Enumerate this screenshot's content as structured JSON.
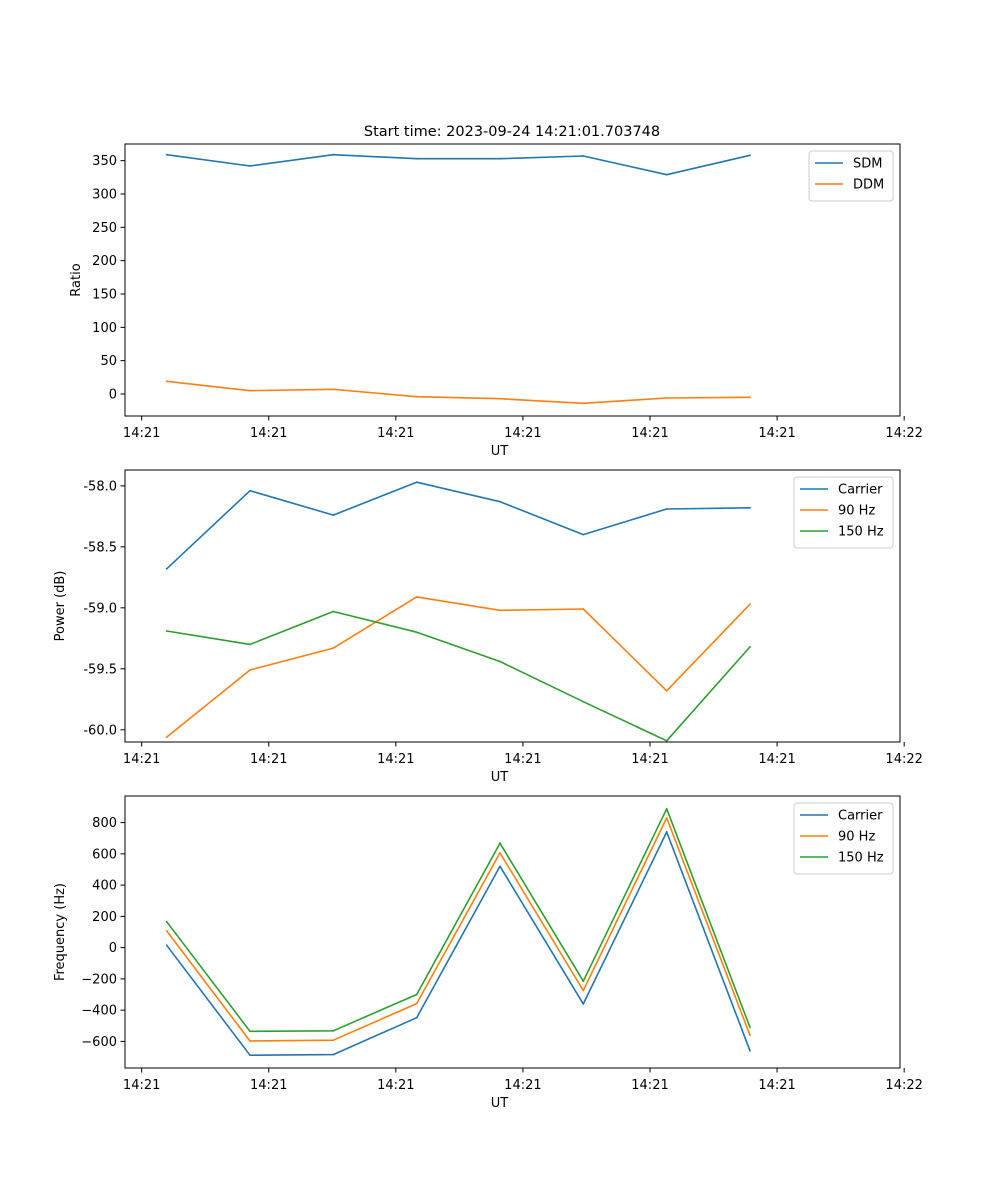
{
  "figure": {
    "title": "Start time: 2023-09-24 14:21:01.703748"
  },
  "chart_data": [
    {
      "type": "line",
      "xlabel": "UT",
      "ylabel": "Ratio",
      "xtick_labels": [
        "14:21",
        "14:21",
        "14:21",
        "14:21",
        "14:21",
        "14:21",
        "14:22"
      ],
      "xlim": [
        -0.2,
        9.1
      ],
      "ylim": [
        -33,
        375
      ],
      "yticks": [
        0,
        50,
        100,
        150,
        200,
        250,
        300,
        350
      ],
      "ytick_labels": [
        "0",
        "50",
        "100",
        "150",
        "200",
        "250",
        "300",
        "350"
      ],
      "x": [
        0.3,
        1.3,
        2.3,
        3.3,
        4.3,
        5.3,
        6.3,
        7.3
      ],
      "legend_position": "top-right",
      "series": [
        {
          "name": "SDM",
          "color": "#1f77b4",
          "values": [
            359,
            342,
            359,
            353,
            353,
            357,
            329,
            358
          ]
        },
        {
          "name": "DDM",
          "color": "#ff7f0e",
          "values": [
            19,
            5,
            7,
            -4,
            -7,
            -14,
            -6,
            -5
          ]
        }
      ]
    },
    {
      "type": "line",
      "xlabel": "UT",
      "ylabel": "Power (dB)",
      "xtick_labels": [
        "14:21",
        "14:21",
        "14:21",
        "14:21",
        "14:21",
        "14:21",
        "14:22"
      ],
      "xlim": [
        -0.2,
        9.1
      ],
      "ylim": [
        -60.1,
        -57.87
      ],
      "yticks": [
        -60.0,
        -59.5,
        -59.0,
        -58.5,
        -58.0
      ],
      "ytick_labels": [
        "-60.0",
        "-59.5",
        "-59.0",
        "-58.5",
        "-58.0"
      ],
      "x": [
        0.3,
        1.3,
        2.3,
        3.3,
        4.3,
        5.3,
        6.3,
        7.3
      ],
      "legend_position": "top-right",
      "series": [
        {
          "name": "Carrier",
          "color": "#1f77b4",
          "values": [
            -58.68,
            -58.04,
            -58.24,
            -57.97,
            -58.13,
            -58.4,
            -58.19,
            -58.18
          ]
        },
        {
          "name": "90 Hz",
          "color": "#ff7f0e",
          "values": [
            -60.06,
            -59.51,
            -59.33,
            -58.91,
            -59.02,
            -59.01,
            -59.68,
            -58.97
          ]
        },
        {
          "name": "150 Hz",
          "color": "#2ca02c",
          "values": [
            -59.19,
            -59.3,
            -59.03,
            -59.2,
            -59.44,
            -59.77,
            -60.09,
            -59.32
          ]
        }
      ]
    },
    {
      "type": "line",
      "xlabel": "UT",
      "ylabel": "Frequency (Hz)",
      "xtick_labels": [
        "14:21",
        "14:21",
        "14:21",
        "14:21",
        "14:21",
        "14:21",
        "14:22"
      ],
      "xlim": [
        -0.2,
        9.1
      ],
      "ylim": [
        -770,
        970
      ],
      "yticks": [
        -600,
        -400,
        -200,
        0,
        200,
        400,
        600,
        800
      ],
      "ytick_labels": [
        "−600",
        "−400",
        "−200",
        "0",
        "200",
        "400",
        "600",
        "800"
      ],
      "x": [
        0.3,
        1.3,
        2.3,
        3.3,
        4.3,
        5.3,
        6.3,
        7.3
      ],
      "legend_position": "top-right",
      "series": [
        {
          "name": "Carrier",
          "color": "#1f77b4",
          "values": [
            15,
            -688,
            -684,
            -448,
            520,
            -360,
            740,
            -660
          ]
        },
        {
          "name": "90 Hz",
          "color": "#ff7f0e",
          "values": [
            107,
            -597,
            -592,
            -358,
            606,
            -274,
            830,
            -560
          ]
        },
        {
          "name": "150 Hz",
          "color": "#2ca02c",
          "values": [
            166,
            -535,
            -532,
            -300,
            668,
            -215,
            888,
            -510
          ]
        }
      ]
    }
  ]
}
